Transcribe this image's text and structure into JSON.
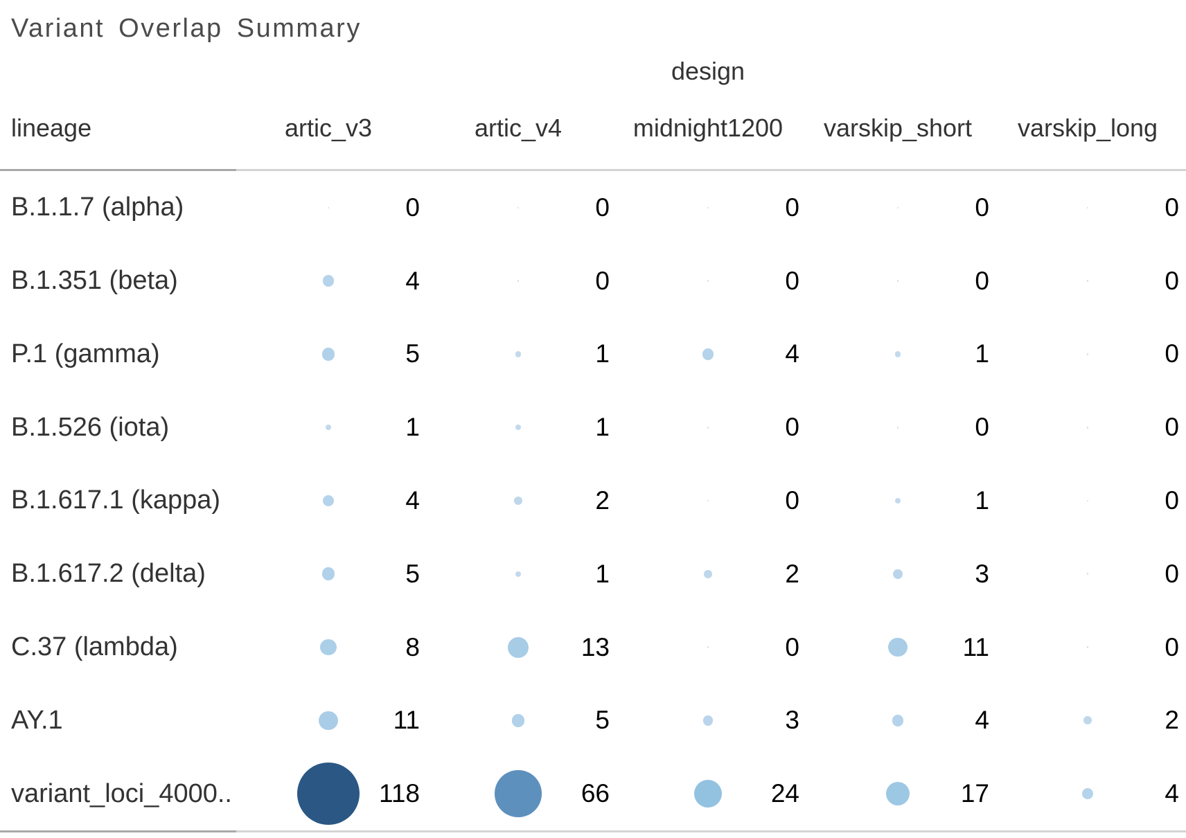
{
  "title": "Variant Overlap Summary",
  "axis": {
    "row_header": "lineage",
    "column_group": "design"
  },
  "chart_data": {
    "type": "scatter",
    "subtype": "bubble-matrix",
    "title": "Variant Overlap Summary",
    "row_dimension": "lineage",
    "column_dimension": "design",
    "columns": [
      "artic_v3",
      "artic_v4",
      "midnight1200",
      "varskip_short",
      "varskip_long"
    ],
    "rows": [
      "B.1.1.7 (alpha)",
      "B.1.351 (beta)",
      "P.1 (gamma)",
      "B.1.526 (iota)",
      "B.1.617.1 (kappa)",
      "B.1.617.2 (delta)",
      "C.37 (lambda)",
      "AY.1",
      "variant_loci_4000.."
    ],
    "values": [
      [
        0,
        0,
        0,
        0,
        0
      ],
      [
        4,
        0,
        0,
        0,
        0
      ],
      [
        5,
        1,
        4,
        1,
        0
      ],
      [
        1,
        1,
        0,
        0,
        0
      ],
      [
        4,
        2,
        0,
        1,
        0
      ],
      [
        5,
        1,
        2,
        3,
        0
      ],
      [
        8,
        13,
        0,
        11,
        0
      ],
      [
        11,
        5,
        3,
        4,
        2
      ],
      [
        118,
        66,
        24,
        17,
        4
      ]
    ],
    "legend_position": "none",
    "grid": "top and bottom pane borders only",
    "size_scale": {
      "encoding": "circle area proportional to value",
      "k": 8.3,
      "zero_diameter": 2.6
    },
    "color_encoding": {
      "palette": "sequential-blues",
      "stops": [
        {
          "value": 0,
          "color": "#cfe0ef"
        },
        {
          "value": 1,
          "color": "#c3d9ec"
        },
        {
          "value": 5,
          "color": "#b0d1e9"
        },
        {
          "value": 13,
          "color": "#a6cce6"
        },
        {
          "value": 17,
          "color": "#9dc8e4"
        },
        {
          "value": 24,
          "color": "#93c2e1"
        },
        {
          "value": 66,
          "color": "#5e90bd"
        },
        {
          "value": 118,
          "color": "#2b5785"
        }
      ]
    }
  },
  "colors": {
    "background": "#ffffff",
    "title_text": "#4b4b4b",
    "header_text": "#333333",
    "row_label_text": "#333333",
    "value_text": "#000000",
    "divider_header_segment": "#a8a8a8",
    "divider_pane_segment": "#d4d4d4"
  }
}
